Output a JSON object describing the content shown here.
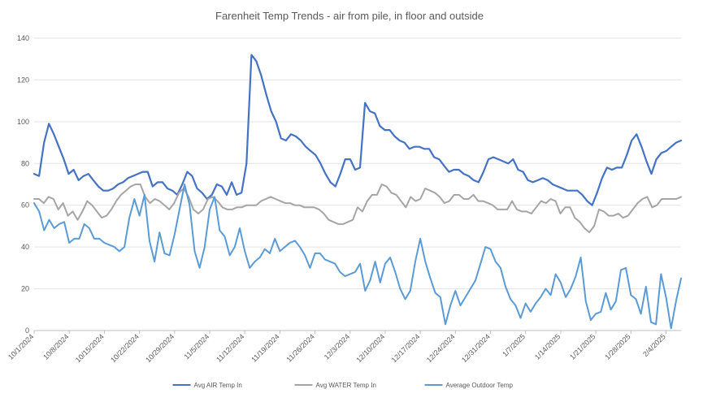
{
  "chart_data": {
    "type": "line",
    "title": "Farenheit Temp Trends - air from pile, in floor and outside",
    "xlabel": "",
    "ylabel": "",
    "ylim": [
      0,
      140
    ],
    "yticks": [
      0,
      20,
      40,
      60,
      80,
      100,
      120,
      140
    ],
    "grid": true,
    "legend_position": "bottom",
    "x_start": "10/1/2024",
    "x_end": "2/7/2025",
    "x_tick_labels": [
      "10/1/2024",
      "10/8/2024",
      "10/15/2024",
      "10/22/2024",
      "10/29/2024",
      "11/5/2024",
      "11/12/2024",
      "11/19/2024",
      "11/26/2024",
      "12/3/2024",
      "12/10/2024",
      "12/17/2024",
      "12/24/2024",
      "12/31/2024",
      "1/7/2025",
      "1/14/2025",
      "1/21/2025",
      "1/28/2025",
      "2/4/2025"
    ],
    "series": [
      {
        "name": "Avg AIR Temp In",
        "color": "#4472C4",
        "values": [
          75,
          74,
          90,
          99,
          94,
          88,
          82,
          75,
          77,
          72,
          74,
          75,
          72,
          69,
          67,
          67,
          68,
          70,
          71,
          73,
          74,
          75,
          76,
          76,
          69,
          71,
          71,
          68,
          67,
          65,
          70,
          76,
          74,
          68,
          66,
          63,
          65,
          70,
          69,
          65,
          71,
          65,
          66,
          80,
          132,
          129,
          122,
          113,
          105,
          100,
          92,
          91,
          94,
          93,
          91,
          88,
          86,
          84,
          80,
          75,
          71,
          69,
          75,
          82,
          82,
          77,
          78,
          109,
          105,
          104,
          98,
          96,
          96,
          93,
          91,
          90,
          87,
          88,
          88,
          87,
          87,
          83,
          82,
          79,
          76,
          77,
          77,
          75,
          74,
          72,
          71,
          76,
          82,
          83,
          82,
          81,
          80,
          82,
          77,
          76,
          72,
          71,
          72,
          73,
          72,
          70,
          69,
          68,
          67,
          67,
          67,
          65,
          62,
          60,
          66,
          73,
          78,
          77,
          78,
          78,
          84,
          91,
          94,
          88,
          81,
          75,
          82,
          85,
          86,
          88,
          90,
          91
        ]
      },
      {
        "name": "Avg WATER Temp In",
        "color": "#A5A5A5",
        "values": [
          63,
          63,
          61,
          64,
          63,
          58,
          61,
          55,
          57,
          53,
          57,
          62,
          60,
          57,
          54,
          55,
          58,
          62,
          65,
          67,
          69,
          70,
          70,
          64,
          61,
          63,
          62,
          60,
          58,
          61,
          66,
          68,
          64,
          58,
          56,
          58,
          63,
          64,
          62,
          59,
          58,
          58,
          59,
          59,
          60,
          60,
          60,
          62,
          63,
          64,
          63,
          62,
          61,
          61,
          60,
          60,
          59,
          59,
          59,
          58,
          56,
          53,
          52,
          51,
          51,
          52,
          53,
          59,
          57,
          62,
          65,
          65,
          70,
          69,
          66,
          65,
          62,
          59,
          64,
          62,
          63,
          68,
          67,
          66,
          64,
          61,
          62,
          65,
          65,
          63,
          63,
          65,
          62,
          62,
          61,
          60,
          58,
          58,
          58,
          62,
          58,
          57,
          57,
          56,
          59,
          62,
          61,
          63,
          62,
          56,
          59,
          59,
          54,
          52,
          49,
          47,
          50,
          58,
          57,
          55,
          55,
          56,
          54,
          55,
          58,
          61,
          63,
          64,
          59,
          60,
          63,
          63,
          63,
          63,
          64
        ]
      },
      {
        "name": "Average Outdoor Temp",
        "color": "#5B9BD5",
        "values": [
          61,
          57,
          48,
          53,
          49,
          51,
          52,
          42,
          44,
          44,
          51,
          49,
          44,
          44,
          42,
          41,
          40,
          38,
          40,
          54,
          63,
          55,
          65,
          43,
          33,
          47,
          37,
          36,
          46,
          58,
          70,
          60,
          38,
          30,
          40,
          58,
          64,
          48,
          45,
          36,
          40,
          49,
          38,
          30,
          33,
          35,
          39,
          37,
          44,
          38,
          40,
          42,
          43,
          40,
          36,
          30,
          37,
          37,
          34,
          33,
          32,
          28,
          26,
          27,
          28,
          32,
          19,
          24,
          33,
          23,
          32,
          35,
          28,
          20,
          15,
          19,
          33,
          44,
          33,
          25,
          18,
          16,
          3,
          12,
          19,
          12,
          16,
          20,
          24,
          32,
          40,
          39,
          33,
          30,
          21,
          15,
          12,
          6,
          13,
          9,
          13,
          16,
          20,
          17,
          27,
          23,
          16,
          20,
          26,
          35,
          14,
          5,
          8,
          9,
          18,
          10,
          14,
          29,
          30,
          17,
          15,
          8,
          21,
          4,
          3,
          27,
          16,
          1,
          14,
          25
        ]
      }
    ]
  }
}
